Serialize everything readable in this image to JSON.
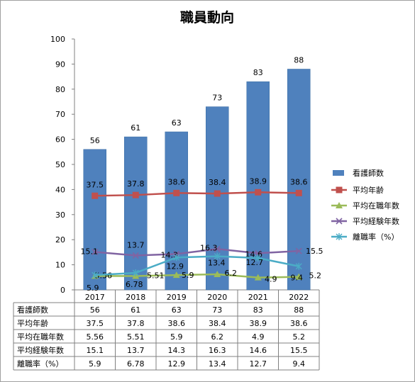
{
  "chart_data": {
    "type": "bar",
    "title": "職員動向",
    "categories": [
      "2017",
      "2018",
      "2019",
      "2020",
      "2021",
      "2022"
    ],
    "ylim": [
      0,
      100
    ],
    "yticks": [
      "0",
      "10",
      "20",
      "30",
      "40",
      "50",
      "60",
      "70",
      "80",
      "90",
      "100"
    ],
    "grid": false,
    "legend_position": "right",
    "series": [
      {
        "name": "看護師数",
        "kind": "bar",
        "marker": "bar",
        "color": "#4f81bd",
        "values": [
          56,
          61,
          63,
          73,
          83,
          88
        ],
        "labels": [
          "56",
          "61",
          "63",
          "73",
          "83",
          "88"
        ],
        "table": [
          "56",
          "61",
          "63",
          "73",
          "83",
          "88"
        ]
      },
      {
        "name": "平均年齢",
        "kind": "line",
        "marker": "square",
        "color": "#c0504d",
        "values": [
          37.5,
          37.8,
          38.6,
          38.4,
          38.9,
          38.6
        ],
        "labels": [
          "37.5",
          "37.8",
          "38.6",
          "38.4",
          "38.9",
          "38.6"
        ],
        "table": [
          "37.5",
          "37.8",
          "38.6",
          "38.4",
          "38.9",
          "38.6"
        ]
      },
      {
        "name": "平均在職年数",
        "kind": "line",
        "marker": "triangle",
        "color": "#9bbb59",
        "values": [
          5.56,
          5.51,
          5.9,
          6.2,
          4.9,
          5.2
        ],
        "labels": [
          "5.56",
          "5.51",
          "5.9",
          "6.2",
          "4.9",
          "5.2"
        ],
        "table": [
          "5.56",
          "5.51",
          "5.9",
          "6.2",
          "4.9",
          "5.2"
        ]
      },
      {
        "name": "平均経験年数",
        "kind": "line",
        "marker": "x",
        "color": "#8064a2",
        "values": [
          15.1,
          13.7,
          14.3,
          16.3,
          14.6,
          15.5
        ],
        "labels": [
          "15.1",
          "13.7",
          "14.3",
          "16.3",
          "14.6",
          "15.5"
        ],
        "table": [
          "15.1",
          "13.7",
          "14.3",
          "16.3",
          "14.6",
          "15.5"
        ]
      },
      {
        "name": "離職率（%）",
        "kind": "line",
        "marker": "star",
        "color": "#4bacc6",
        "values": [
          5.9,
          6.78,
          12.9,
          13.4,
          12.7,
          9.4
        ],
        "labels": [
          "5.9",
          "6.78",
          "12.9",
          "13.4",
          "12.7",
          "9.4"
        ],
        "table": [
          "5.9",
          "6.78",
          "12.9",
          "13.4",
          "12.7",
          "9.4"
        ]
      }
    ],
    "table_row_labels": [
      "看護師数",
      "平均年齢",
      "平均在職年数",
      "平均経験年数",
      "離職率（%）"
    ]
  }
}
